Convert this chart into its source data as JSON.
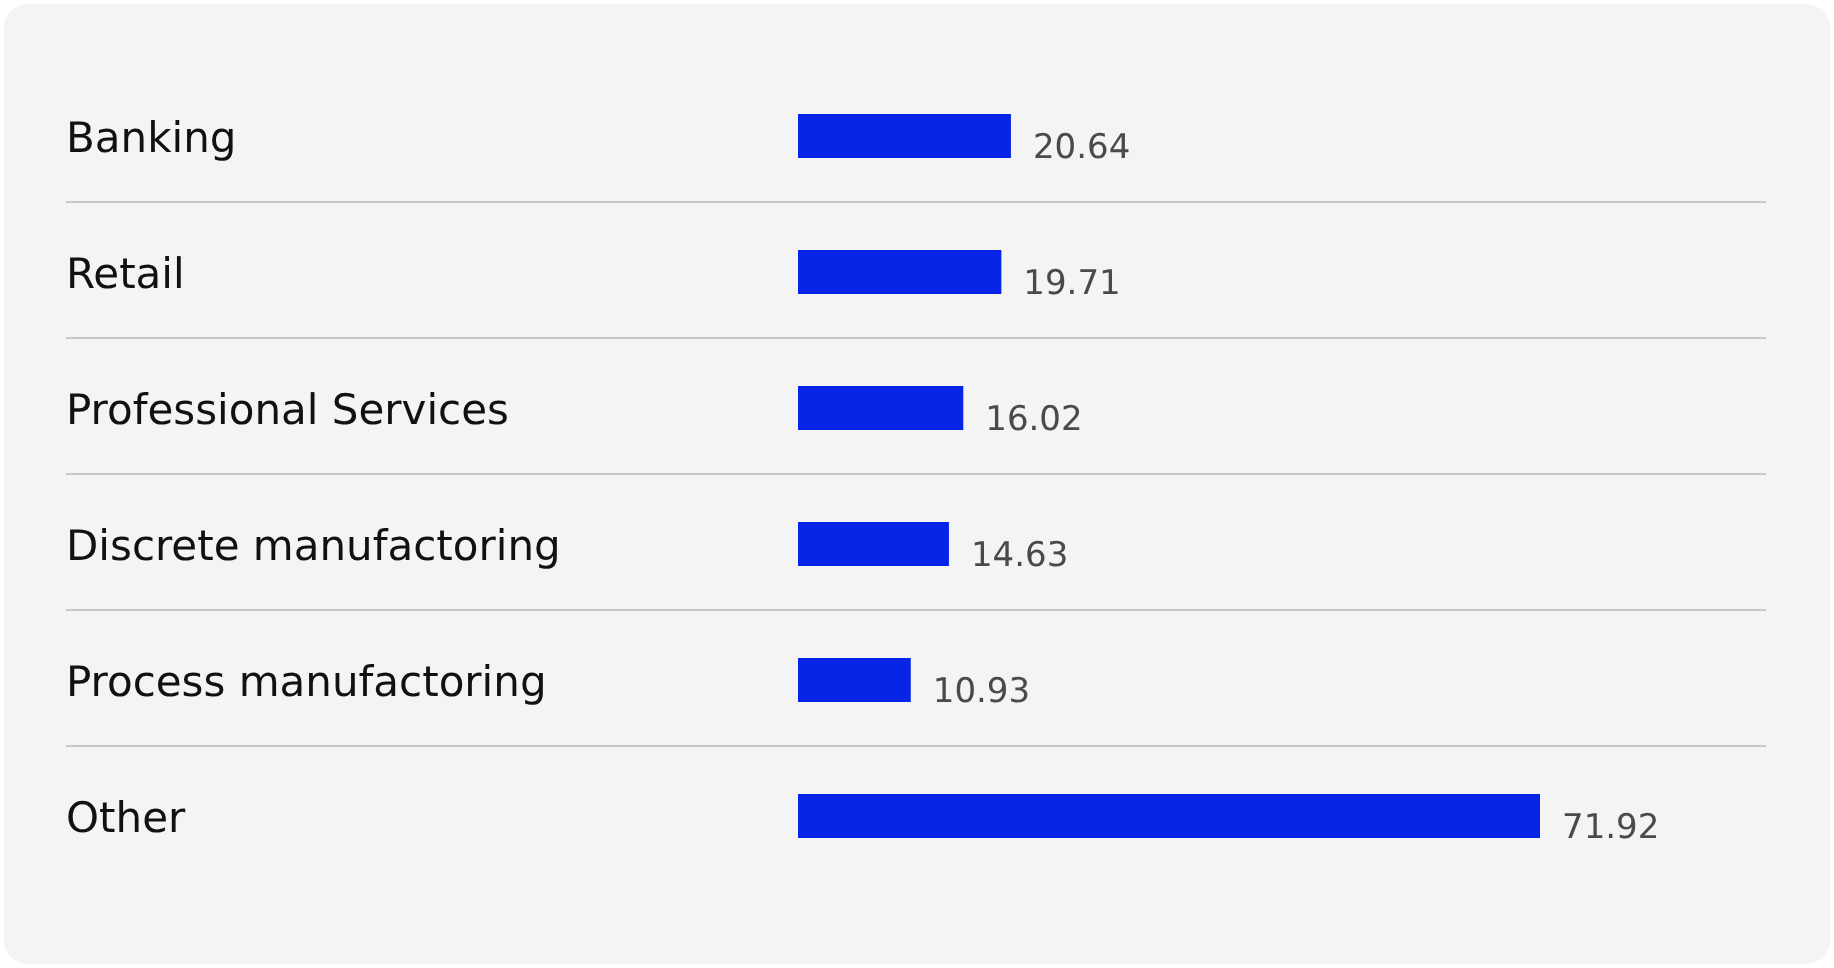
{
  "chart_data": {
    "type": "bar",
    "orientation": "horizontal",
    "relative": false,
    "categories": [
      "Banking",
      "Retail",
      "Professional Services",
      "Discrete manufactoring",
      "Process manufactoring",
      "Other"
    ],
    "values": [
      20.64,
      19.71,
      16.02,
      14.63,
      10.93,
      71.92
    ],
    "color": "#0625e6",
    "data_labels": true
  }
}
